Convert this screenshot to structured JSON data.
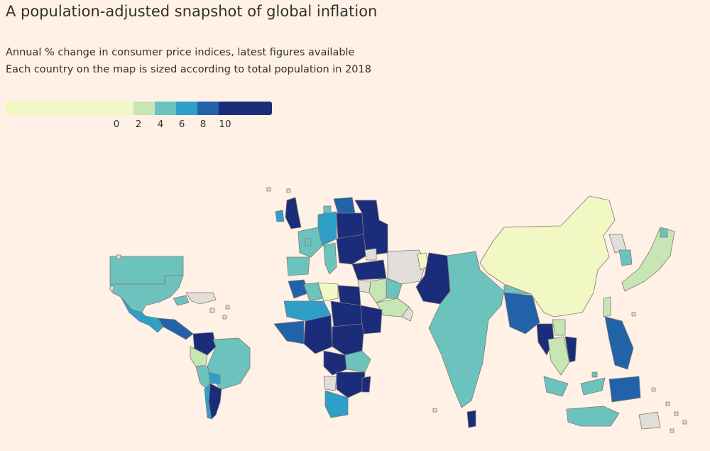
{
  "title": "A population-adjusted snapshot of global inflation",
  "subtitle": [
    "Annual % change in consumer price indices, latest figures available",
    "Each country on the map is sized according to total population in 2018"
  ],
  "legend": {
    "bins": [
      {
        "color": "#f2f8c3",
        "from": null,
        "to": 0
      },
      {
        "color": "#c6e6b3",
        "from": 0,
        "to": 2
      },
      {
        "color": "#6cc3bd",
        "from": 2,
        "to": 4
      },
      {
        "color": "#2ea0c8",
        "from": 4,
        "to": 6
      },
      {
        "color": "#2262a8",
        "from": 6,
        "to": 8
      },
      {
        "color": "#1b2c7a",
        "from": 8,
        "to": 10
      }
    ],
    "ticks": [
      "0",
      "2",
      "4",
      "6",
      "8",
      "10"
    ]
  },
  "colors": {
    "background": "#fff1e5",
    "no_data_fill": "#e6e3e0",
    "border": "#807973"
  }
}
